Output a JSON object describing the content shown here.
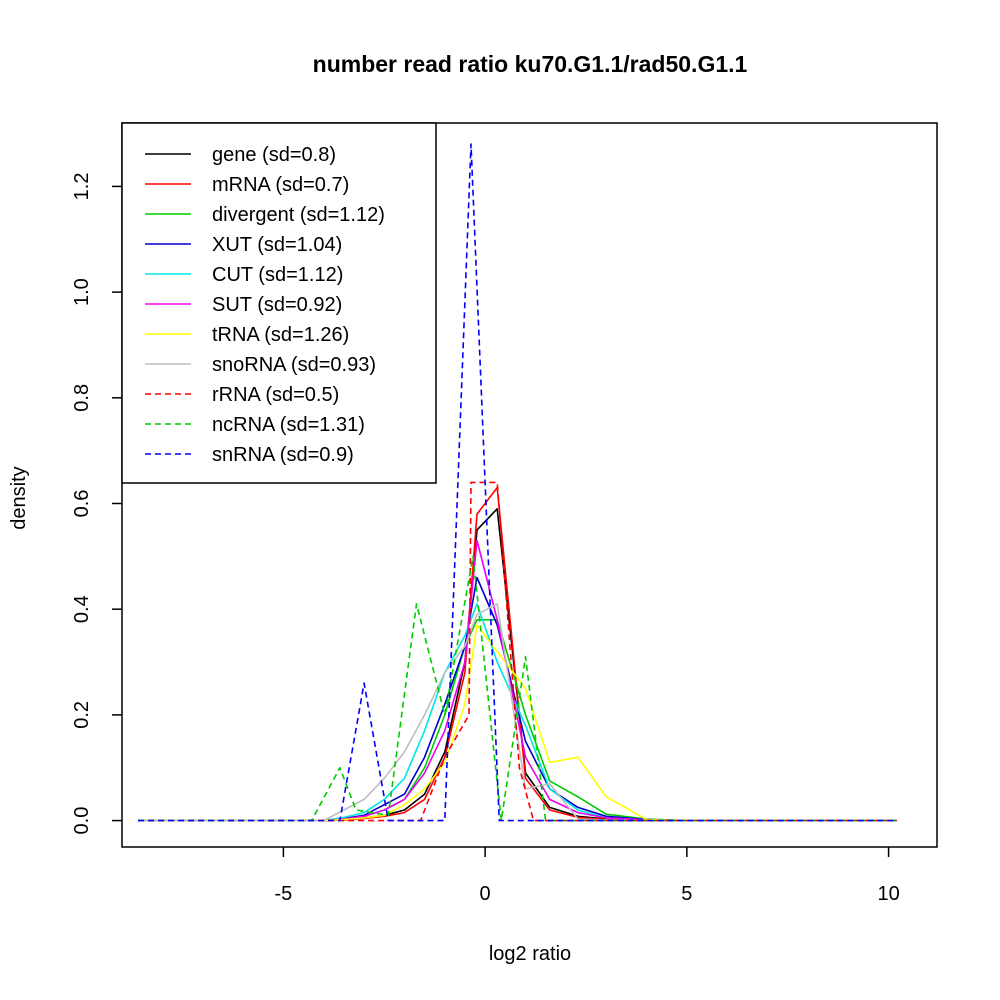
{
  "chart_data": {
    "type": "line",
    "title": "number read ratio ku70.G1.1/rad50.G1.1",
    "xlabel": "log2 ratio",
    "ylabel": "density",
    "xlim": [
      -9.0,
      11.2
    ],
    "ylim": [
      -0.05,
      1.32
    ],
    "xticks": [
      -5,
      0,
      5,
      10
    ],
    "yticks": [
      0.0,
      0.2,
      0.4,
      0.6,
      0.8,
      1.0,
      1.2
    ],
    "legend_position": "top-left",
    "series": [
      {
        "name": "gene (sd=0.8)",
        "color": "#000000",
        "dash": "solid",
        "x": [
          -8.6,
          -5,
          -4,
          -3.5,
          -3,
          -2.5,
          -2,
          -1.5,
          -1,
          -0.5,
          -0.2,
          0.3,
          1,
          1.6,
          2.3,
          3,
          4,
          5,
          6,
          10.2
        ],
        "y": [
          0,
          0,
          0,
          0.002,
          0.005,
          0.01,
          0.02,
          0.05,
          0.13,
          0.3,
          0.55,
          0.59,
          0.09,
          0.025,
          0.008,
          0.003,
          0.001,
          0,
          0,
          0
        ]
      },
      {
        "name": "mRNA (sd=0.7)",
        "color": "#ff0000",
        "dash": "solid",
        "x": [
          -8.6,
          -5,
          -4,
          -3.5,
          -3,
          -2.5,
          -2,
          -1.5,
          -1,
          -0.5,
          -0.2,
          0.3,
          1,
          1.6,
          2.3,
          3,
          4,
          5,
          10.2
        ],
        "y": [
          0,
          0,
          0,
          0.001,
          0.004,
          0.008,
          0.015,
          0.04,
          0.12,
          0.28,
          0.58,
          0.63,
          0.08,
          0.02,
          0.006,
          0.002,
          0,
          0,
          0
        ]
      },
      {
        "name": "divergent (sd=1.12)",
        "color": "#00cc00",
        "dash": "solid",
        "x": [
          -8.6,
          -5,
          -4,
          -3.5,
          -3,
          -2.5,
          -2,
          -1.5,
          -1,
          -0.5,
          -0.2,
          0.3,
          1,
          1.6,
          2.3,
          3,
          4,
          5,
          10.2
        ],
        "y": [
          0,
          0,
          0,
          0.003,
          0.008,
          0.02,
          0.04,
          0.1,
          0.2,
          0.33,
          0.38,
          0.38,
          0.2,
          0.075,
          0.045,
          0.012,
          0.003,
          0,
          0
        ]
      },
      {
        "name": "XUT (sd=1.04)",
        "color": "#0000cc",
        "dash": "solid",
        "x": [
          -8.6,
          -5,
          -4,
          -3.5,
          -3,
          -2.5,
          -2,
          -1.5,
          -1,
          -0.5,
          -0.2,
          0.3,
          1,
          1.6,
          2.3,
          3,
          4,
          5,
          10.2
        ],
        "y": [
          0,
          0,
          0,
          0.004,
          0.01,
          0.03,
          0.05,
          0.12,
          0.22,
          0.33,
          0.46,
          0.37,
          0.15,
          0.06,
          0.025,
          0.008,
          0.002,
          0,
          0
        ]
      },
      {
        "name": "CUT (sd=1.12)",
        "color": "#00e5e5",
        "dash": "solid",
        "x": [
          -8.6,
          -5,
          -4,
          -3.5,
          -3,
          -2.5,
          -2,
          -1.5,
          -1,
          -0.5,
          -0.2,
          0.3,
          1,
          1.6,
          2.3,
          3,
          4,
          5,
          10.2
        ],
        "y": [
          0,
          0,
          0,
          0.006,
          0.015,
          0.04,
          0.08,
          0.17,
          0.28,
          0.35,
          0.41,
          0.3,
          0.18,
          0.06,
          0.02,
          0.005,
          0.001,
          0,
          0
        ]
      },
      {
        "name": "SUT (sd=0.92)",
        "color": "#ee00ee",
        "dash": "solid",
        "x": [
          -8.6,
          -5,
          -4,
          -3.5,
          -3,
          -2.5,
          -2,
          -1.5,
          -1,
          -0.5,
          -0.2,
          0.3,
          1,
          1.6,
          2.3,
          3,
          4,
          5,
          10.2
        ],
        "y": [
          0,
          0,
          0,
          0.003,
          0.008,
          0.02,
          0.04,
          0.09,
          0.17,
          0.3,
          0.53,
          0.38,
          0.12,
          0.04,
          0.015,
          0.005,
          0.001,
          0,
          0
        ]
      },
      {
        "name": "tRNA (sd=1.26)",
        "color": "#ffff00",
        "dash": "solid",
        "x": [
          -8.6,
          -5,
          -4,
          -3.5,
          -3,
          -2.5,
          -2,
          -1.5,
          -1,
          -0.5,
          -0.2,
          0.3,
          1,
          1.6,
          2.3,
          3,
          4,
          5,
          10.2
        ],
        "y": [
          0,
          0,
          0,
          0.002,
          0.005,
          0.01,
          0.03,
          0.06,
          0.11,
          0.22,
          0.37,
          0.32,
          0.25,
          0.11,
          0.12,
          0.045,
          0.002,
          0,
          0
        ]
      },
      {
        "name": "snoRNA (sd=0.93)",
        "color": "#bebebe",
        "dash": "solid",
        "x": [
          -8.6,
          -5,
          -4,
          -3.5,
          -3,
          -2.5,
          -2,
          -1.5,
          -1,
          -0.5,
          -0.2,
          0.3,
          1,
          1.6,
          2.3,
          3,
          4,
          5,
          10.2
        ],
        "y": [
          0,
          0,
          0,
          0.02,
          0.04,
          0.08,
          0.13,
          0.2,
          0.28,
          0.33,
          0.39,
          0.41,
          0.06,
          0.07,
          0.003,
          0.001,
          0,
          0,
          0
        ]
      },
      {
        "name": "rRNA (sd=0.5)",
        "color": "#ff0000",
        "dash": "dashed",
        "x": [
          -8.6,
          -1.6,
          -1,
          -0.4,
          -0.35,
          0.3,
          0.85,
          1.2,
          1.7,
          10.2
        ],
        "y": [
          0,
          0,
          0.12,
          0.2,
          0.64,
          0.64,
          0.1,
          0,
          0,
          0
        ]
      },
      {
        "name": "ncRNA (sd=1.31)",
        "color": "#00cc00",
        "dash": "dashed",
        "x": [
          -8.6,
          -4.3,
          -3.6,
          -3.2,
          -2.4,
          -1.7,
          -1,
          -0.3,
          0.4,
          1,
          1.5,
          10.2
        ],
        "y": [
          0,
          0,
          0.1,
          0.02,
          0.01,
          0.41,
          0.2,
          0.5,
          0,
          0.31,
          0,
          0
        ]
      },
      {
        "name": "snRNA (sd=0.9)",
        "color": "#0000ff",
        "dash": "dashed",
        "x": [
          -8.6,
          -3.6,
          -3,
          -2.4,
          -1,
          -0.35,
          0.35,
          10.2
        ],
        "y": [
          0,
          0,
          0.26,
          0,
          0,
          1.28,
          0,
          0
        ]
      }
    ]
  }
}
